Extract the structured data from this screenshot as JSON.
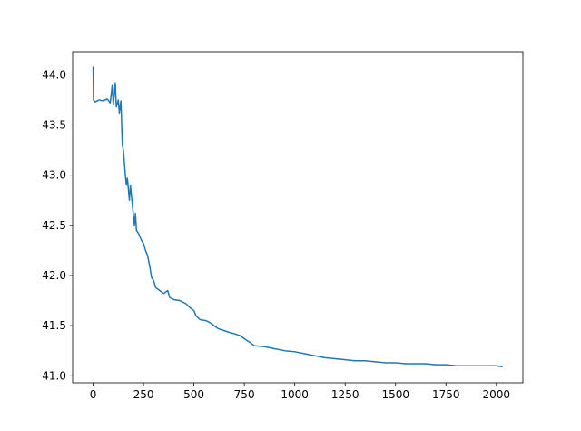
{
  "chart_data": {
    "type": "line",
    "color": "#1f77b4",
    "x": [
      0,
      2,
      10,
      30,
      50,
      70,
      85,
      95,
      100,
      110,
      115,
      125,
      130,
      138,
      145,
      150,
      160,
      165,
      170,
      180,
      185,
      195,
      205,
      210,
      215,
      225,
      240,
      250,
      260,
      270,
      280,
      290,
      300,
      310,
      330,
      350,
      370,
      380,
      400,
      430,
      460,
      480,
      500,
      510,
      530,
      560,
      580,
      600,
      620,
      650,
      680,
      700,
      730,
      750,
      780,
      800,
      850,
      900,
      950,
      1000,
      1050,
      1100,
      1150,
      1200,
      1250,
      1300,
      1350,
      1400,
      1450,
      1500,
      1550,
      1600,
      1650,
      1700,
      1750,
      1800,
      1850,
      1900,
      1950,
      2000,
      2030
    ],
    "values": [
      44.08,
      43.75,
      43.73,
      43.75,
      43.74,
      43.76,
      43.72,
      43.9,
      43.7,
      43.92,
      43.68,
      43.75,
      43.62,
      43.74,
      43.3,
      43.25,
      43.0,
      42.9,
      42.97,
      42.75,
      42.9,
      42.7,
      42.5,
      42.62,
      42.45,
      42.42,
      42.35,
      42.32,
      42.25,
      42.2,
      42.1,
      41.98,
      41.95,
      41.88,
      41.85,
      41.82,
      41.85,
      41.78,
      41.76,
      41.75,
      41.72,
      41.68,
      41.65,
      41.6,
      41.56,
      41.55,
      41.53,
      41.5,
      41.47,
      41.45,
      41.43,
      41.42,
      41.4,
      41.37,
      41.33,
      41.3,
      41.29,
      41.27,
      41.25,
      41.24,
      41.22,
      41.2,
      41.18,
      41.17,
      41.16,
      41.15,
      41.15,
      41.14,
      41.13,
      41.13,
      41.12,
      41.12,
      41.12,
      41.11,
      41.11,
      41.1,
      41.1,
      41.1,
      41.1,
      41.1,
      41.09
    ],
    "xlim": [
      -101.5,
      2131.5
    ],
    "ylim": [
      40.93,
      44.23
    ],
    "xticks": [
      0,
      250,
      500,
      750,
      1000,
      1250,
      1500,
      1750,
      2000
    ],
    "yticks": [
      {
        "value": 41.0,
        "label": "41.0"
      },
      41.5,
      {
        "value": 42.0,
        "label": "42.0"
      },
      42.5,
      {
        "value": 43.0,
        "label": "43.0"
      },
      43.5,
      {
        "value": 44.0,
        "label": "44.0"
      }
    ]
  }
}
